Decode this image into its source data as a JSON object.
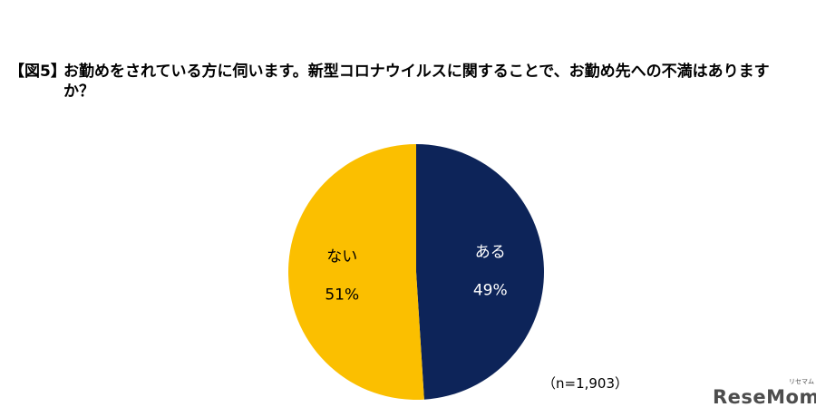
{
  "title_prefix": "【図5】",
  "title": "お勤めをされている方に伺います。新型コロナウイルスに関することで、お勤め先への不満はありますか？",
  "note": "（n=1,903）",
  "logo": "ReseMom",
  "logo_ruby": "リセマム",
  "chart_data": {
    "type": "pie",
    "title": "お勤めをされている方に伺います。新型コロナウイルスに関することで、お勤め先への不満はありますか？",
    "start_angle": "12 o'clock",
    "direction": "clockwise",
    "slices": [
      {
        "label": "ある",
        "value": 49,
        "value_label": "49%",
        "color": "#0d2459"
      },
      {
        "label": "ない",
        "value": 51,
        "value_label": "51%",
        "color": "#fbbf00"
      }
    ],
    "legend": "none"
  }
}
